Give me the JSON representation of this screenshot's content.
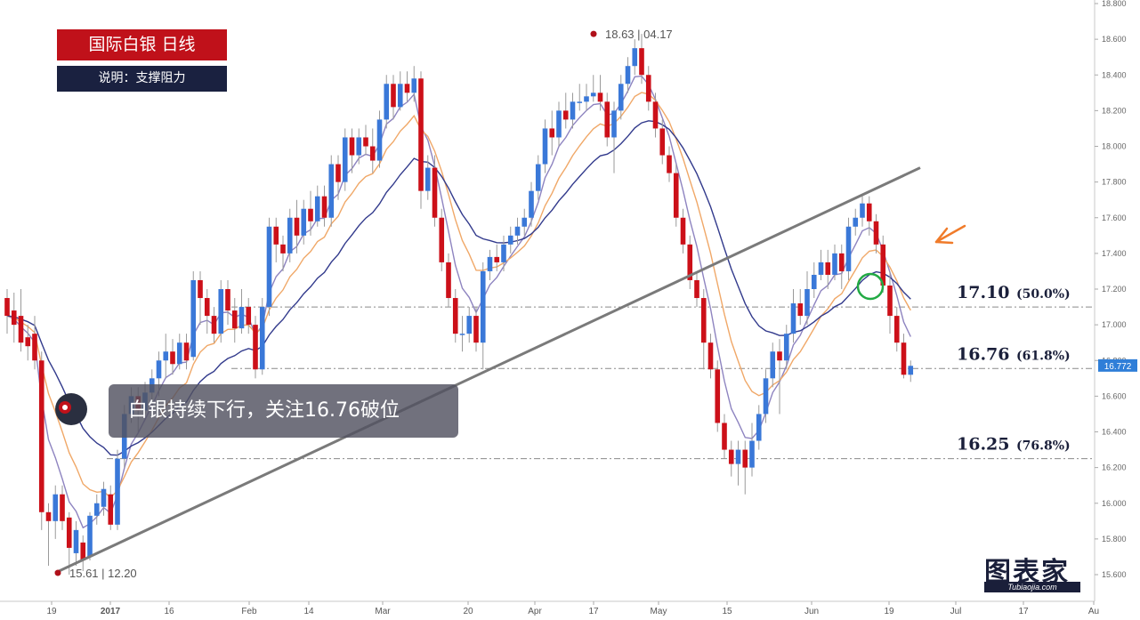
{
  "header": {
    "title": "国际白银  日线",
    "subtitle": "说明：支撑阻力"
  },
  "note": "白银持续下行，关注16.76破位",
  "logo": {
    "main": "图表家",
    "sub": "Tubiaojia.com"
  },
  "colors": {
    "up": "#3a78d8",
    "down": "#cc1019",
    "ma_fast": "#8e84c0",
    "ma_mid": "#f0a868",
    "ma_slow": "#323a8c",
    "trendline": "#7a7a7a",
    "level_line": "#8a8a8a",
    "circle": "#22aa44",
    "arrow": "#f07b2a"
  },
  "chart_data": {
    "type": "candlestick",
    "ylim": [
      15.55,
      18.8
    ],
    "y_ticks": [
      "18.800",
      "18.600",
      "18.400",
      "18.200",
      "18.000",
      "17.800",
      "17.600",
      "17.400",
      "17.200",
      "17.000",
      "16.800",
      "16.600",
      "16.400",
      "16.200",
      "16.000",
      "15.800",
      "15.600"
    ],
    "x_ticks": [
      "19",
      "2017",
      "16",
      "Feb",
      "14",
      "Mar",
      "20",
      "Apr",
      "17",
      "May",
      "15",
      "Jun",
      "19",
      "Jul",
      "17",
      "Au"
    ],
    "last_price": "16.772",
    "annotations": {
      "high": {
        "label": "18.63 | 04.17",
        "value": 18.63
      },
      "low": {
        "label": "15.61 | 12.20",
        "value": 15.61
      }
    },
    "levels": [
      {
        "price": "17.10",
        "pct": "(50.0%)",
        "value": 17.1
      },
      {
        "price": "16.76",
        "pct": "(61.8%)",
        "value": 16.755
      },
      {
        "price": "16.25",
        "pct": "(76.8%)",
        "value": 16.25
      }
    ],
    "trendline": {
      "from": [
        15.61,
        "12.20"
      ],
      "to_value": 17.88
    },
    "candles": [
      [
        17.15,
        17.05,
        17.2,
        16.95
      ],
      [
        17.08,
        17.0,
        17.18,
        16.9
      ],
      [
        17.05,
        16.9,
        17.2,
        16.85
      ],
      [
        16.93,
        16.88,
        17.0,
        16.8
      ],
      [
        16.95,
        16.8,
        17.05,
        16.75
      ],
      [
        16.8,
        15.95,
        16.85,
        15.85
      ],
      [
        15.95,
        15.9,
        16.0,
        15.65
      ],
      [
        15.9,
        16.05,
        16.1,
        15.8
      ],
      [
        16.05,
        15.9,
        16.1,
        15.85
      ],
      [
        15.92,
        15.75,
        15.95,
        15.6
      ],
      [
        15.72,
        15.85,
        15.9,
        15.65
      ],
      [
        15.78,
        15.68,
        15.82,
        15.62
      ],
      [
        15.7,
        15.93,
        15.95,
        15.68
      ],
      [
        15.93,
        16.0,
        16.05,
        15.88
      ],
      [
        15.98,
        16.08,
        16.12,
        15.93
      ],
      [
        16.05,
        15.88,
        16.1,
        15.85
      ],
      [
        15.88,
        16.25,
        16.3,
        15.85
      ],
      [
        16.25,
        16.5,
        16.55,
        16.2
      ],
      [
        16.5,
        16.6,
        16.65,
        16.45
      ],
      [
        16.6,
        16.52,
        16.65,
        16.4
      ],
      [
        16.52,
        16.62,
        16.68,
        16.5
      ],
      [
        16.62,
        16.7,
        16.75,
        16.55
      ],
      [
        16.7,
        16.8,
        16.85,
        16.6
      ],
      [
        16.8,
        16.85,
        16.95,
        16.7
      ],
      [
        16.85,
        16.78,
        16.92,
        16.72
      ],
      [
        16.78,
        16.9,
        16.95,
        16.75
      ],
      [
        16.9,
        16.8,
        16.95,
        16.75
      ],
      [
        16.82,
        17.25,
        17.3,
        16.8
      ],
      [
        17.25,
        17.15,
        17.3,
        17.0
      ],
      [
        17.15,
        17.05,
        17.2,
        16.95
      ],
      [
        17.05,
        16.95,
        17.1,
        16.9
      ],
      [
        16.95,
        17.2,
        17.25,
        16.9
      ],
      [
        17.2,
        17.08,
        17.25,
        17.0
      ],
      [
        17.08,
        16.98,
        17.15,
        16.9
      ],
      [
        16.98,
        17.1,
        17.2,
        16.95
      ],
      [
        17.1,
        17.0,
        17.15,
        16.95
      ],
      [
        17.0,
        16.75,
        17.05,
        16.7
      ],
      [
        16.75,
        17.1,
        17.15,
        16.72
      ],
      [
        17.1,
        17.55,
        17.6,
        17.05
      ],
      [
        17.55,
        17.45,
        17.6,
        17.35
      ],
      [
        17.45,
        17.4,
        17.5,
        17.3
      ],
      [
        17.4,
        17.6,
        17.65,
        17.35
      ],
      [
        17.6,
        17.5,
        17.7,
        17.4
      ],
      [
        17.5,
        17.65,
        17.7,
        17.45
      ],
      [
        17.65,
        17.58,
        17.75,
        17.5
      ],
      [
        17.58,
        17.72,
        17.78,
        17.55
      ],
      [
        17.72,
        17.6,
        17.78,
        17.55
      ],
      [
        17.6,
        17.9,
        17.95,
        17.55
      ],
      [
        17.9,
        17.8,
        17.95,
        17.7
      ],
      [
        17.8,
        18.05,
        18.1,
        17.75
      ],
      [
        18.05,
        17.95,
        18.1,
        17.85
      ],
      [
        17.95,
        18.05,
        18.1,
        17.9
      ],
      [
        18.05,
        18.0,
        18.12,
        17.95
      ],
      [
        18.0,
        17.92,
        18.1,
        17.85
      ],
      [
        17.92,
        18.15,
        18.2,
        17.88
      ],
      [
        18.15,
        18.35,
        18.4,
        18.1
      ],
      [
        18.35,
        18.22,
        18.4,
        18.15
      ],
      [
        18.22,
        18.35,
        18.42,
        18.2
      ],
      [
        18.35,
        18.3,
        18.42,
        18.25
      ],
      [
        18.3,
        18.38,
        18.45,
        18.25
      ],
      [
        18.38,
        17.75,
        18.42,
        17.65
      ],
      [
        17.75,
        17.88,
        17.95,
        17.7
      ],
      [
        17.88,
        17.6,
        17.95,
        17.55
      ],
      [
        17.6,
        17.35,
        17.65,
        17.3
      ],
      [
        17.35,
        17.15,
        17.4,
        17.1
      ],
      [
        17.15,
        16.95,
        17.2,
        16.9
      ],
      [
        16.95,
        16.95,
        17.05,
        16.85
      ],
      [
        16.95,
        17.05,
        17.1,
        16.9
      ],
      [
        17.05,
        16.9,
        17.1,
        16.85
      ],
      [
        16.9,
        17.3,
        17.35,
        16.75
      ],
      [
        17.3,
        17.38,
        17.42,
        17.25
      ],
      [
        17.38,
        17.35,
        17.45,
        17.3
      ],
      [
        17.35,
        17.45,
        17.5,
        17.3
      ],
      [
        17.45,
        17.5,
        17.55,
        17.4
      ],
      [
        17.5,
        17.55,
        17.6,
        17.45
      ],
      [
        17.55,
        17.6,
        17.65,
        17.5
      ],
      [
        17.6,
        17.75,
        17.8,
        17.55
      ],
      [
        17.75,
        17.9,
        17.95,
        17.7
      ],
      [
        17.9,
        18.1,
        18.15,
        17.85
      ],
      [
        18.1,
        18.05,
        18.2,
        17.95
      ],
      [
        18.05,
        18.2,
        18.25,
        18.0
      ],
      [
        18.2,
        18.15,
        18.3,
        18.1
      ],
      [
        18.15,
        18.25,
        18.3,
        18.1
      ],
      [
        18.25,
        18.25,
        18.35,
        18.2
      ],
      [
        18.25,
        18.28,
        18.35,
        18.2
      ],
      [
        18.28,
        18.3,
        18.4,
        18.25
      ],
      [
        18.3,
        18.25,
        18.4,
        18.2
      ],
      [
        18.25,
        18.05,
        18.3,
        18.0
      ],
      [
        18.05,
        18.2,
        18.25,
        17.85
      ],
      [
        18.2,
        18.35,
        18.4,
        18.15
      ],
      [
        18.35,
        18.45,
        18.5,
        18.3
      ],
      [
        18.45,
        18.55,
        18.6,
        18.4
      ],
      [
        18.55,
        18.4,
        18.63,
        18.35
      ],
      [
        18.4,
        18.25,
        18.45,
        18.2
      ],
      [
        18.25,
        18.1,
        18.3,
        18.05
      ],
      [
        18.1,
        17.95,
        18.15,
        17.9
      ],
      [
        17.95,
        17.85,
        18.0,
        17.8
      ],
      [
        17.85,
        17.6,
        17.9,
        17.55
      ],
      [
        17.6,
        17.45,
        17.65,
        17.4
      ],
      [
        17.45,
        17.25,
        17.5,
        17.2
      ],
      [
        17.25,
        17.15,
        17.3,
        17.1
      ],
      [
        17.15,
        16.9,
        17.2,
        16.75
      ],
      [
        16.9,
        16.75,
        16.95,
        16.7
      ],
      [
        16.75,
        16.45,
        16.8,
        16.4
      ],
      [
        16.45,
        16.3,
        16.5,
        16.25
      ],
      [
        16.3,
        16.22,
        16.35,
        16.15
      ],
      [
        16.22,
        16.3,
        16.35,
        16.1
      ],
      [
        16.3,
        16.2,
        16.35,
        16.05
      ],
      [
        16.2,
        16.35,
        16.45,
        16.15
      ],
      [
        16.35,
        16.5,
        16.55,
        16.3
      ],
      [
        16.5,
        16.7,
        16.75,
        16.45
      ],
      [
        16.7,
        16.85,
        16.9,
        16.65
      ],
      [
        16.85,
        16.8,
        16.92,
        16.5
      ],
      [
        16.8,
        16.95,
        17.0,
        16.75
      ],
      [
        16.95,
        17.12,
        17.2,
        16.9
      ],
      [
        17.12,
        17.05,
        17.2,
        17.0
      ],
      [
        17.05,
        17.2,
        17.3,
        17.0
      ],
      [
        17.2,
        17.28,
        17.35,
        17.15
      ],
      [
        17.28,
        17.35,
        17.42,
        17.25
      ],
      [
        17.35,
        17.28,
        17.42,
        17.2
      ],
      [
        17.28,
        17.4,
        17.45,
        17.25
      ],
      [
        17.4,
        17.3,
        17.45,
        17.2
      ],
      [
        17.3,
        17.55,
        17.6,
        17.25
      ],
      [
        17.55,
        17.6,
        17.65,
        17.5
      ],
      [
        17.6,
        17.68,
        17.72,
        17.55
      ],
      [
        17.68,
        17.58,
        17.72,
        17.5
      ],
      [
        17.58,
        17.45,
        17.62,
        17.4
      ],
      [
        17.45,
        17.22,
        17.5,
        17.18
      ],
      [
        17.22,
        17.05,
        17.3,
        16.95
      ],
      [
        17.05,
        16.9,
        17.1,
        16.85
      ],
      [
        16.9,
        16.72,
        16.95,
        16.7
      ],
      [
        16.72,
        16.77,
        16.8,
        16.68
      ]
    ]
  }
}
